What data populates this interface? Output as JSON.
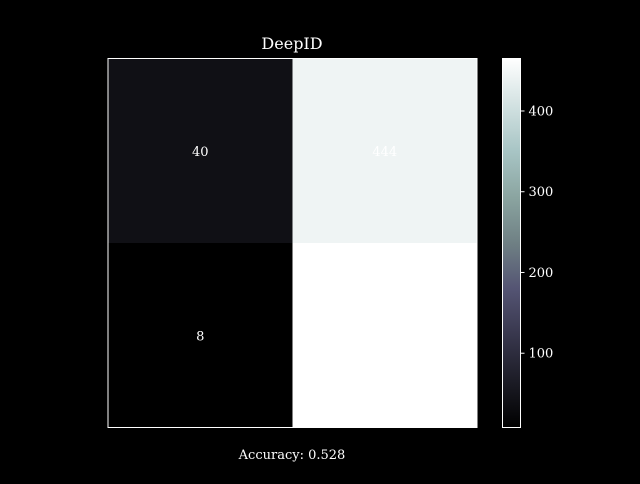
{
  "chart_data": {
    "type": "heatmap",
    "title": "DeepID",
    "rows": 2,
    "cols": 2,
    "values": [
      [
        40,
        444
      ],
      [
        8,
        465
      ]
    ],
    "colorbar": {
      "range": [
        8,
        465
      ],
      "ticks": [
        100,
        200,
        300,
        400
      ],
      "colormap": "bone"
    },
    "xlabel": "Accuracy: 0.528"
  },
  "colors": {
    "background": "#000000",
    "text": "#ffffff",
    "frame": "#ffffff"
  }
}
